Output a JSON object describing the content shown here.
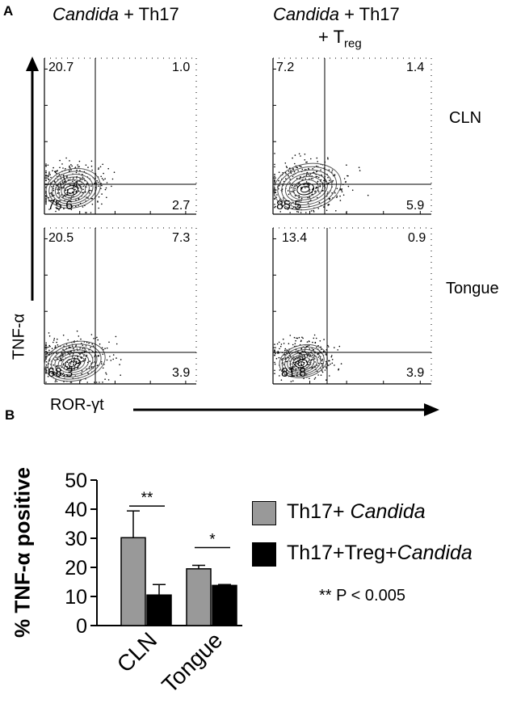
{
  "panel_a": {
    "letter": "A",
    "col1": {
      "italic": "Candida",
      "rest": " + Th17"
    },
    "col2": {
      "italic": "Candida",
      "rest": " + Th17",
      "line2": "+ T",
      "sub": "reg"
    },
    "row1_label": "CLN",
    "row2_label": "Tongue",
    "y_axis": "TNF-α",
    "x_axis": "ROR-γt",
    "plots": {
      "cln_th17": {
        "ul": "20.7",
        "ur": "1.0",
        "ll": "75.6",
        "lr": "2.7"
      },
      "cln_treg": {
        "ul": "7.2",
        "ur": "1.4",
        "ll": "85.5",
        "lr": "5.9"
      },
      "tongue_th17": {
        "ul": "20.5",
        "ur": "7.3",
        "ll": "68.3",
        "lr": "3.9"
      },
      "tongue_treg": {
        "ul": "13.4",
        "ur": "0.9",
        "ll": "81.8",
        "lr": "3.9"
      }
    }
  },
  "panel_b": {
    "letter": "B"
  },
  "colors": {
    "gray_bar": "#999999",
    "black_bar": "#000000"
  },
  "chart_data": {
    "type": "bar",
    "title": "",
    "xlabel": "",
    "ylabel": "% TNF-α positive",
    "ylim": [
      0,
      50
    ],
    "yticks": [
      "0",
      "10",
      "20",
      "30",
      "40",
      "50"
    ],
    "categories": [
      "CLN",
      "Tongue"
    ],
    "series": [
      {
        "name": "Th17+ Candida",
        "legend_plain": "Th17+ ",
        "legend_italic": "Candida",
        "values": [
          30.2,
          19.5
        ],
        "errors": [
          9.2,
          1.2
        ]
      },
      {
        "name": "Th17+Treg+Candida",
        "legend_plain": "Th17+Treg+",
        "legend_italic": "Candida",
        "values": [
          10.5,
          13.8
        ],
        "errors": [
          3.6,
          0.3
        ]
      }
    ],
    "significance": [
      "**",
      "*"
    ],
    "footnote": "** P < 0.005"
  }
}
